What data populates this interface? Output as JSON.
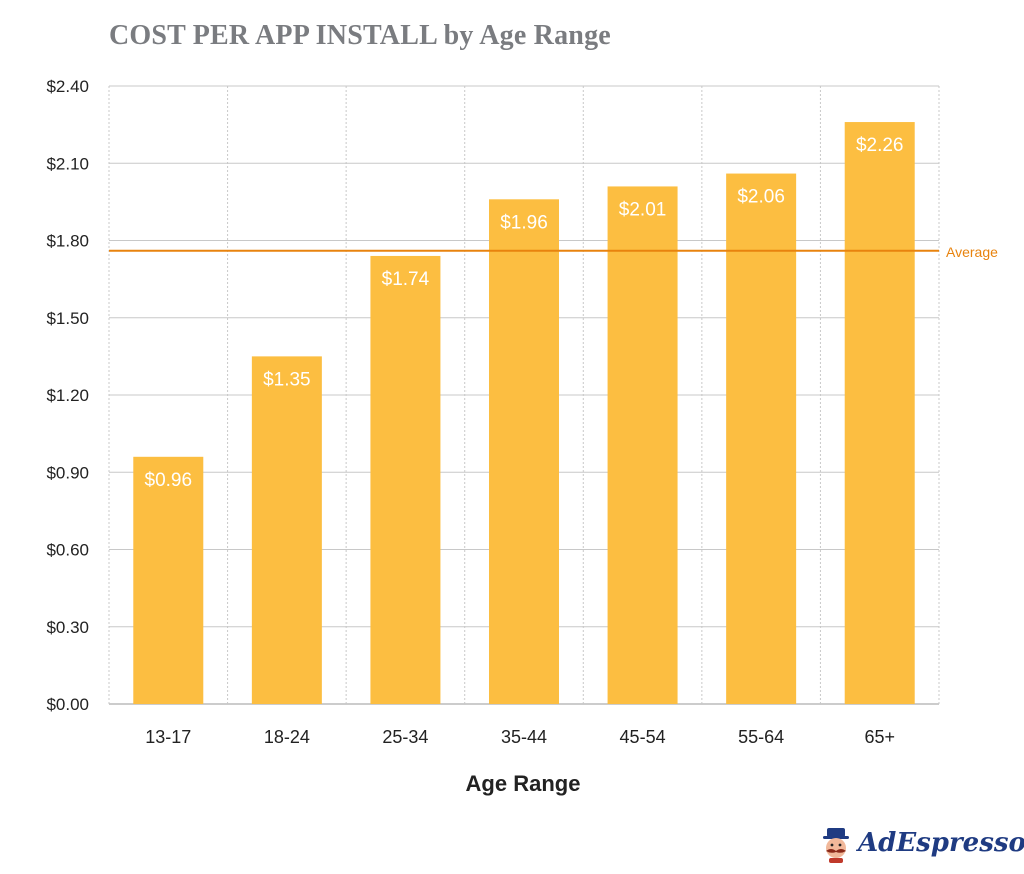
{
  "title": "COST PER APP INSTALL by Age Range",
  "brand": {
    "name": "AdEspresso",
    "logo_icon": "mascot-icon"
  },
  "colors": {
    "bar": "#fcbe41",
    "average_line": "#e8830e",
    "grid": "#c8c8c8",
    "title": "#7a7c80"
  },
  "chart_data": {
    "type": "bar",
    "title": "COST PER APP INSTALL by Age Range",
    "xlabel": "Age Range",
    "ylabel": "",
    "categories": [
      "13-17",
      "18-24",
      "25-34",
      "35-44",
      "45-54",
      "55-64",
      "65+"
    ],
    "values": [
      0.96,
      1.35,
      1.74,
      1.96,
      2.01,
      2.06,
      2.26
    ],
    "data_labels": [
      "$0.96",
      "$1.35",
      "$1.74",
      "$1.96",
      "$2.01",
      "$2.06",
      "$2.26"
    ],
    "ylim": [
      0,
      2.4
    ],
    "yticks": [
      0,
      0.3,
      0.6,
      0.9,
      1.2,
      1.5,
      1.8,
      2.1,
      2.4
    ],
    "ytick_labels": [
      "$0.00",
      "$0.30",
      "$0.60",
      "$0.90",
      "$1.20",
      "$1.50",
      "$1.80",
      "$2.10",
      "$2.40"
    ],
    "grid": true,
    "reference_line": {
      "label": "Average",
      "value": 1.76
    }
  }
}
